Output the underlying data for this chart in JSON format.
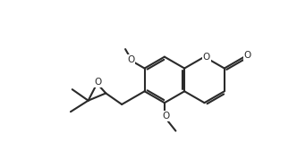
{
  "bg": "#ffffff",
  "lc": "#2a2a2a",
  "lw": 1.5,
  "figsize": [
    3.32,
    1.86
  ],
  "dpi": 100,
  "xlim": [
    0.0,
    9.0
  ],
  "ylim": [
    0.0,
    5.2
  ],
  "rl": 0.72,
  "bx": 5.0,
  "by": 2.7
}
